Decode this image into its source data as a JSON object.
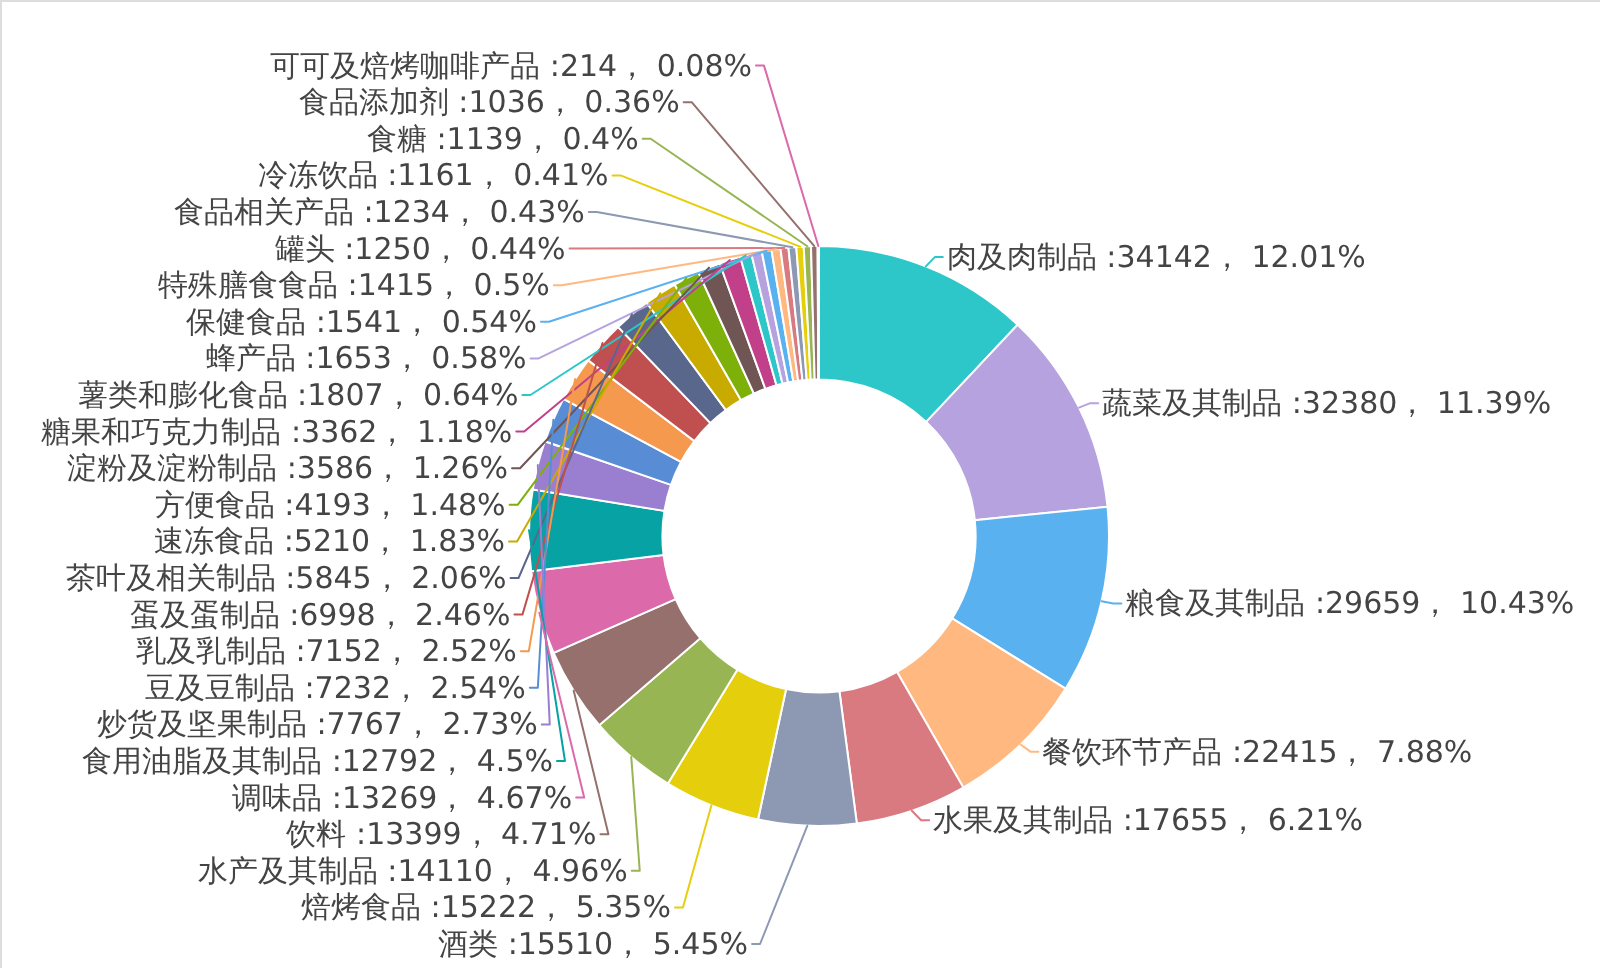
{
  "chart_data": {
    "type": "donut",
    "categories": [
      "肉及肉制品",
      "蔬菜及其制品",
      "粮食及其制品",
      "餐饮环节产品",
      "水果及其制品",
      "酒类",
      "焙烤食品",
      "水产及其制品",
      "饮料",
      "调味品",
      "食用油脂及其制品",
      "炒货及坚果制品",
      "豆及豆制品",
      "乳及乳制品",
      "蛋及蛋制品",
      "茶叶及相关制品",
      "速冻食品",
      "方便食品",
      "淀粉及淀粉制品",
      "糖果和巧克力制品",
      "薯类和膨化食品",
      "蜂产品",
      "保健食品",
      "特殊膳食食品",
      "罐头",
      "食品相关产品",
      "冷冻饮品",
      "食糖",
      "食品添加剂",
      "可可及焙烤咖啡产品"
    ],
    "values": [
      34142,
      32380,
      29659,
      22415,
      17655,
      15510,
      15222,
      14110,
      13399,
      13269,
      12792,
      7767,
      7232,
      7152,
      6998,
      5845,
      5210,
      4193,
      3586,
      3362,
      1807,
      1653,
      1541,
      1415,
      1250,
      1234,
      1161,
      1139,
      1036,
      214
    ],
    "value_labels": [
      ":34142， 12.01%",
      ":32380， 11.39%",
      ":29659， 10.43%",
      ":22415， 7.88%",
      ":17655， 6.21%",
      ":15510， 5.45%",
      ":15222， 5.35%",
      ":14110， 4.96%",
      ":13399， 4.71%",
      ":13269， 4.67%",
      ":12792， 4.5%",
      ":7767， 2.73%",
      ":7232， 2.54%",
      ":7152， 2.52%",
      ":6998， 2.46%",
      ":5845， 2.06%",
      ":5210， 1.83%",
      ":4193， 1.48%",
      ":3586， 1.26%",
      ":3362， 1.18%",
      ":1807， 0.64%",
      ":1653， 0.58%",
      ":1541， 0.54%",
      ":1415， 0.5%",
      ":1250， 0.44%",
      ":1234， 0.43%",
      ":1161， 0.41%",
      ":1139， 0.4%",
      ":1036， 0.36%",
      ":214， 0.08%"
    ],
    "colors": [
      "#2ec7c9",
      "#b6a2de",
      "#5ab1ef",
      "#ffb980",
      "#d87a80",
      "#8d98b3",
      "#e5cf0d",
      "#97b552",
      "#95706d",
      "#dc69aa",
      "#07a2a4",
      "#9a7fd1",
      "#588dd5",
      "#f5994e",
      "#c05050",
      "#59678c",
      "#c9ab00",
      "#7eb00a",
      "#6f5553",
      "#c14089",
      "#2ec7c9",
      "#b6a2de",
      "#5ab1ef",
      "#ffb980",
      "#d87a80",
      "#8d98b3",
      "#e5cf0d",
      "#97b552",
      "#95706d",
      "#dc69aa"
    ]
  }
}
